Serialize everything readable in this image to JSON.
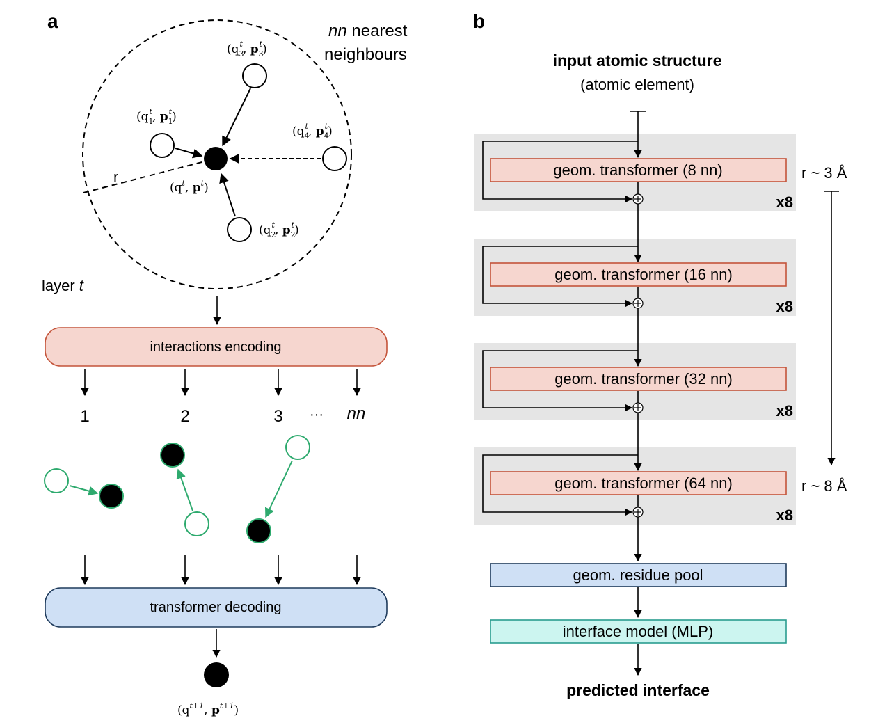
{
  "panel_a": {
    "label": "a",
    "nn_label": "nn",
    "nn_caption_rest": " nearest",
    "nn_caption_line2": "neighbours",
    "radius_label": "r",
    "layer_label": "layer ",
    "layer_var": "t",
    "neighbours": [
      {
        "q": "q",
        "idx": "3",
        "sup": "t",
        "p": "p"
      },
      {
        "q": "q",
        "idx": "1",
        "sup": "t",
        "p": "p"
      },
      {
        "q": "q",
        "idx": "4",
        "sup": "t",
        "p": "p"
      },
      {
        "q": "q",
        "idx": "2",
        "sup": "t",
        "p": "p"
      }
    ],
    "center_label": {
      "q": "q",
      "sup": "t",
      "p": "p"
    },
    "encoding_box": "interactions encoding",
    "index_labels": [
      "1",
      "2",
      "3",
      "···",
      "nn"
    ],
    "decoding_box": "transformer decoding",
    "output_label": {
      "q": "q",
      "sup": "t+1",
      "p": "p"
    }
  },
  "panel_b": {
    "label": "b",
    "input_title": "input atomic structure",
    "input_subtitle": "(atomic element)",
    "blocks": [
      {
        "label": "geom. transformer (8 nn)",
        "repeat": "x8"
      },
      {
        "label": "geom. transformer (16 nn)",
        "repeat": "x8"
      },
      {
        "label": "geom. transformer (32 nn)",
        "repeat": "x8"
      },
      {
        "label": "geom. transformer (64 nn)",
        "repeat": "x8"
      }
    ],
    "radius_start": "r ~ 3 Å",
    "radius_end": "r ~ 8 Å",
    "pool_box": "geom. residue pool",
    "interface_box": "interface model (MLP)",
    "output_title": "predicted interface"
  },
  "colors": {
    "encoding_fill": "#f6d6cf",
    "encoding_stroke": "#c4543a",
    "decoding_fill": "#cfe0f5",
    "decoding_stroke": "#1f3b5c",
    "block_bg": "#e5e5e5",
    "transformer_fill": "#f6d6cf",
    "transformer_stroke": "#c4543a",
    "pool_fill": "#cfe0f5",
    "pool_stroke": "#1f3b5c",
    "interface_fill": "#ccf5f0",
    "interface_stroke": "#2a9d8f",
    "green": "#2eaa6e"
  }
}
